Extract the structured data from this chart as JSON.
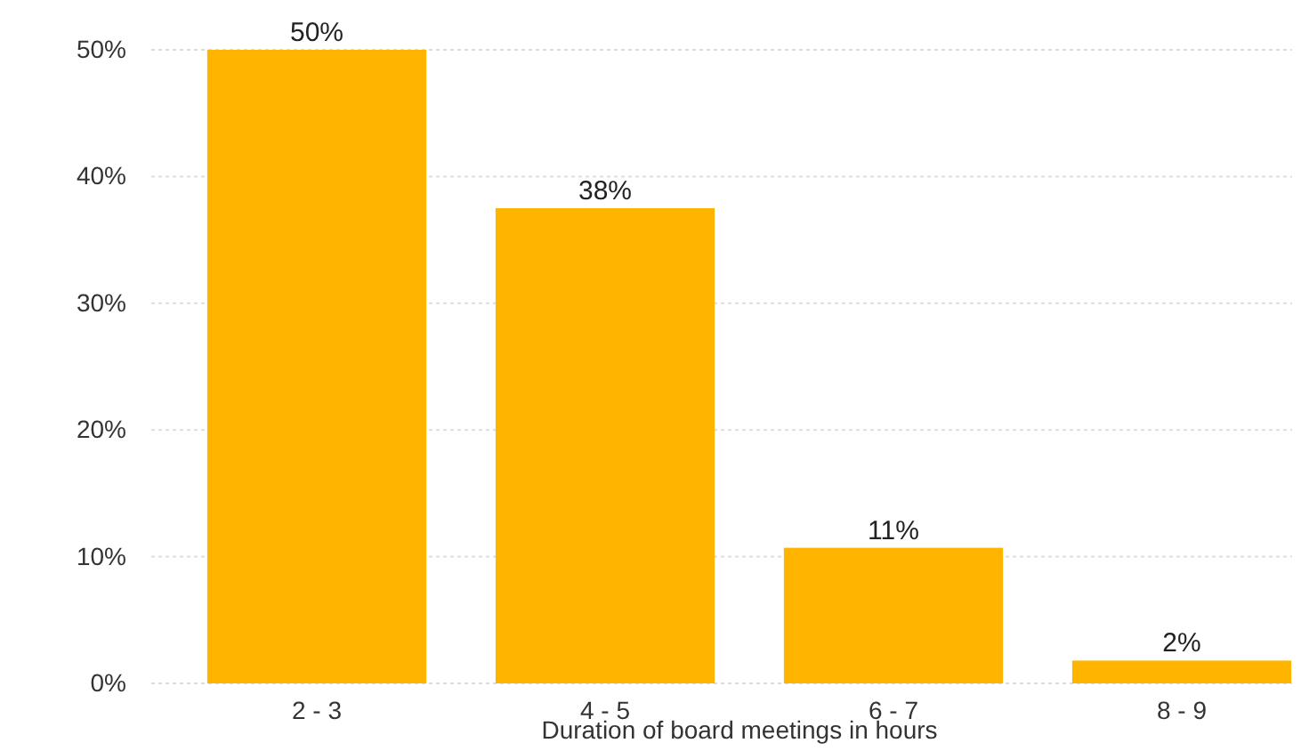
{
  "chart_data": {
    "type": "bar",
    "xlabel": "Duration of board meetings in hours",
    "categories": [
      "2 - 3",
      "4 - 5",
      "6 - 7",
      "8 - 9"
    ],
    "values": [
      50,
      37.5,
      10.7,
      1.8
    ],
    "value_labels": [
      "50%",
      "38%",
      "11%",
      "2%"
    ],
    "color": "#ffb400",
    "ylim": [
      0,
      50
    ],
    "yticks": [
      {
        "value": 0,
        "label": "0%"
      },
      {
        "value": 10,
        "label": "10%"
      },
      {
        "value": 20,
        "label": "20%"
      },
      {
        "value": 30,
        "label": "30%"
      },
      {
        "value": 40,
        "label": "40%"
      },
      {
        "value": 50,
        "label": "50%"
      }
    ],
    "grid": "y"
  }
}
